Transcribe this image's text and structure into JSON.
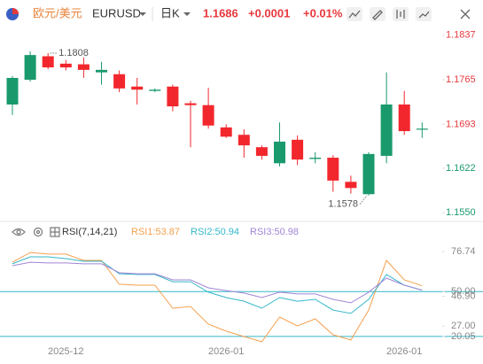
{
  "header": {
    "name": "欧元/美元",
    "code": "EURUSD",
    "period": "日K",
    "price": 1.1686,
    "change": "+0.0001",
    "change_pct": "+0.01%"
  },
  "chart_data": [
    {
      "type": "candlestick",
      "categories": [
        null,
        null,
        null,
        "2025-12",
        null,
        null,
        null,
        null,
        null,
        null,
        null,
        null,
        "2026-01",
        null,
        null,
        null,
        null,
        null,
        null,
        null,
        null,
        null,
        "2026-01",
        null
      ],
      "open": [
        1.1725,
        1.1765,
        1.1803,
        1.1791,
        1.179,
        1.1777,
        1.1774,
        1.1754,
        1.1747,
        1.1754,
        1.1727,
        1.1724,
        1.1688,
        1.1676,
        1.1656,
        1.163,
        1.1668,
        1.1637,
        1.1639,
        1.16,
        1.158,
        1.1642,
        1.1725,
        1.1685
      ],
      "high": [
        1.1771,
        1.1811,
        1.1808,
        1.1797,
        1.1801,
        1.1794,
        1.178,
        1.1768,
        1.1751,
        1.1757,
        1.1731,
        1.1752,
        1.1693,
        1.1685,
        1.1659,
        1.1696,
        1.1675,
        1.1648,
        1.1643,
        1.161,
        1.1648,
        1.1777,
        1.1747,
        1.1696
      ],
      "low": [
        1.1708,
        1.1762,
        1.1782,
        1.178,
        1.1768,
        1.1757,
        1.1745,
        1.1725,
        1.1745,
        1.1714,
        1.1656,
        1.1686,
        1.1671,
        1.1639,
        1.1636,
        1.1625,
        1.1627,
        1.163,
        1.1584,
        1.1581,
        1.1578,
        1.163,
        1.1676,
        1.1671
      ],
      "close": [
        1.1768,
        1.1805,
        1.1785,
        1.1785,
        1.1781,
        1.1781,
        1.1751,
        1.1749,
        1.1749,
        1.1722,
        1.1724,
        1.1691,
        1.1673,
        1.1659,
        1.1642,
        1.1665,
        1.1636,
        1.1639,
        1.1602,
        1.159,
        1.1645,
        1.1725,
        1.1682,
        1.1686
      ],
      "up_color": "#1a9a6c",
      "down_color": "#f2272d",
      "max_label": 1.1808,
      "min_label": 1.1578,
      "ylim": [
        1.1536,
        1.1851
      ],
      "yticks": [
        1.1837,
        1.1765,
        1.1693,
        1.1622,
        {
          "value": 1.155,
          "label": "1.1550"
        }
      ],
      "ytick_colors": [
        "#e8383d",
        "#e8383d",
        "#e8383d",
        "#1a9a6c",
        "#1a9a6c"
      ]
    },
    {
      "type": "line",
      "title": "RSI(7,14,21)",
      "legend_labels": [
        "RSI1:53.87",
        "RSI2:50.94",
        "RSI3:50.98"
      ],
      "series": [
        {
          "name": "RSI1",
          "color": "#f5a04f",
          "values": [
            69.6,
            76.1,
            75.0,
            75.0,
            70.8,
            70.8,
            54.9,
            54.3,
            54.3,
            38.9,
            40.1,
            28.3,
            23.6,
            20.0,
            16.5,
            33.0,
            27.1,
            31.8,
            21.2,
            17.7,
            37.7,
            70.8,
            57.8,
            53.87
          ]
        },
        {
          "name": "RSI2",
          "color": "#35b8c9",
          "values": [
            68.5,
            73.2,
            73.2,
            72.0,
            70.2,
            70.2,
            61.9,
            61.4,
            61.4,
            56.6,
            56.6,
            49.6,
            46.0,
            43.6,
            38.9,
            46.0,
            43.6,
            44.8,
            37.7,
            35.4,
            44.8,
            61.4,
            54.3,
            50.94
          ]
        },
        {
          "name": "RSI3",
          "color": "#a185d6",
          "values": [
            67.3,
            69.6,
            69.1,
            69.1,
            68.5,
            68.5,
            62.6,
            61.9,
            61.9,
            57.8,
            57.8,
            52.5,
            50.7,
            49.0,
            46.0,
            49.6,
            48.4,
            48.4,
            44.8,
            42.5,
            49.6,
            59.0,
            54.3,
            50.98
          ]
        }
      ],
      "ylim": [
        14.1,
        85
      ],
      "yticks": [
        76.74,
        {
          "value": 50,
          "label": "50.00"
        },
        {
          "value": 46.9,
          "label": "46.90"
        },
        {
          "value": 27,
          "label": "27.00"
        },
        20.05
      ],
      "hlines": [
        50,
        20.05
      ],
      "hline_color": "#35b8c9"
    }
  ]
}
